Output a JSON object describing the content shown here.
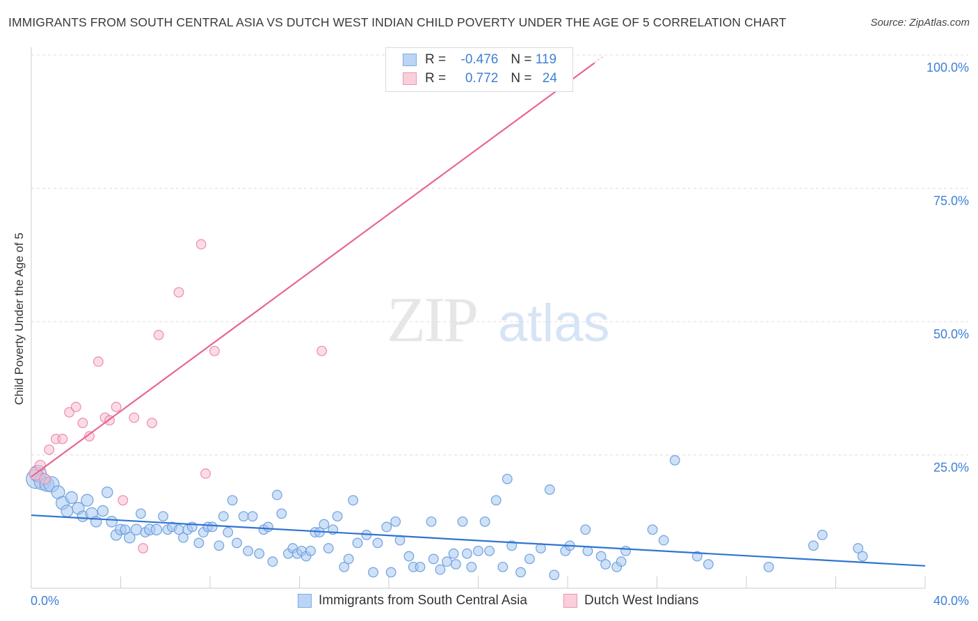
{
  "title": "IMMIGRANTS FROM SOUTH CENTRAL ASIA VS DUTCH WEST INDIAN CHILD POVERTY UNDER THE AGE OF 5 CORRELATION CHART",
  "source": "Source: ZipAtlas.com",
  "watermark": {
    "zip": "ZIP",
    "atlas": "atlas"
  },
  "legend": {
    "rows": [
      {
        "r_label": "R = ",
        "r_value": "-0.476",
        "n_label": "N = ",
        "n_value": "119",
        "color": "#a8c8f0",
        "border": "#7aaae6"
      },
      {
        "r_label": "R = ",
        "r_value": "0.772",
        "n_label": "N = ",
        "n_value": "24",
        "color": "#f8c0d0",
        "border": "#ef93b0"
      }
    ]
  },
  "bottom_legend": {
    "series1": "Immigrants from South Central Asia",
    "series2": "Dutch West Indians"
  },
  "colors": {
    "blue_fill": "#a8c8f0",
    "blue_stroke": "#6fa0e0",
    "blue_line": "#2f74d0",
    "pink_fill": "#f8c0d0",
    "pink_stroke": "#ec8cab",
    "pink_line": "#e8648e",
    "axis_label": "#3d7fd6",
    "grid": "#dddddd"
  },
  "chart_data": {
    "type": "scatter",
    "xlabel": "",
    "ylabel": "Child Poverty Under the Age of 5",
    "xlim": [
      0,
      40
    ],
    "ylim": [
      0,
      100
    ],
    "x_tick_labels": [
      {
        "value": 0,
        "label": "0.0%"
      },
      {
        "value": 40,
        "label": "40.0%"
      }
    ],
    "x_minor_ticks": [
      4,
      8,
      12,
      16,
      20,
      24,
      28,
      32,
      36
    ],
    "y_ticks": [
      {
        "value": 25,
        "label": "25.0%"
      },
      {
        "value": 50,
        "label": "50.0%"
      },
      {
        "value": 75,
        "label": "75.0%"
      },
      {
        "value": 100,
        "label": "100.0%"
      }
    ],
    "series": [
      {
        "name": "Immigrants from South Central Asia",
        "color": "#a8c8f0",
        "trend": {
          "x": [
            0,
            40
          ],
          "y": [
            13.7,
            4.2
          ]
        },
        "points": [
          [
            0.2,
            20.5,
            16
          ],
          [
            0.3,
            21.5,
            14
          ],
          [
            0.5,
            20,
            14
          ],
          [
            0.7,
            19.5,
            12
          ],
          [
            0.9,
            19.5,
            13
          ],
          [
            1.2,
            18,
            11
          ],
          [
            1.4,
            16,
            11
          ],
          [
            1.6,
            14.5,
            10
          ],
          [
            1.8,
            17,
            10
          ],
          [
            2.1,
            15,
            10
          ],
          [
            2.3,
            13.5,
            9
          ],
          [
            2.5,
            16.5,
            10
          ],
          [
            2.7,
            14,
            10
          ],
          [
            2.9,
            12.5,
            9
          ],
          [
            3.2,
            14.5,
            9
          ],
          [
            3.4,
            18,
            9
          ],
          [
            3.6,
            12.5,
            9
          ],
          [
            3.8,
            10,
            9
          ],
          [
            4.0,
            11,
            9
          ],
          [
            4.2,
            11,
            8
          ],
          [
            4.4,
            9.5,
            9
          ],
          [
            4.7,
            11,
            9
          ],
          [
            4.9,
            14,
            8
          ],
          [
            5.1,
            10.5,
            8
          ],
          [
            5.3,
            11,
            9
          ],
          [
            5.6,
            11,
            9
          ],
          [
            5.9,
            13.5,
            8
          ],
          [
            6.1,
            11,
            8
          ],
          [
            6.3,
            11.5,
            8
          ],
          [
            6.6,
            11,
            8
          ],
          [
            6.8,
            9.5,
            8
          ],
          [
            7.0,
            11,
            8
          ],
          [
            7.2,
            11.5,
            8
          ],
          [
            7.5,
            8.5,
            8
          ],
          [
            7.7,
            10.5,
            8
          ],
          [
            7.9,
            11.5,
            8
          ],
          [
            8.1,
            11.5,
            8
          ],
          [
            8.4,
            8,
            8
          ],
          [
            8.6,
            13.5,
            8
          ],
          [
            8.8,
            10.5,
            8
          ],
          [
            9.0,
            16.5,
            8
          ],
          [
            9.2,
            8.5,
            8
          ],
          [
            9.5,
            13.5,
            8
          ],
          [
            9.7,
            7,
            8
          ],
          [
            9.9,
            13.5,
            8
          ],
          [
            10.2,
            6.5,
            8
          ],
          [
            10.4,
            11,
            8
          ],
          [
            10.6,
            11.5,
            8
          ],
          [
            10.8,
            5,
            8
          ],
          [
            11.0,
            17.5,
            8
          ],
          [
            11.2,
            14,
            8
          ],
          [
            11.5,
            6.5,
            8
          ],
          [
            11.7,
            7.5,
            8
          ],
          [
            11.9,
            6.5,
            8
          ],
          [
            12.1,
            7,
            8
          ],
          [
            12.3,
            6,
            8
          ],
          [
            12.5,
            7,
            8
          ],
          [
            12.7,
            10.5,
            8
          ],
          [
            12.9,
            10.5,
            8
          ],
          [
            13.1,
            12,
            8
          ],
          [
            13.3,
            7.5,
            8
          ],
          [
            13.5,
            11,
            8
          ],
          [
            13.7,
            13.5,
            8
          ],
          [
            14.0,
            4,
            8
          ],
          [
            14.2,
            5.5,
            8
          ],
          [
            14.4,
            16.5,
            8
          ],
          [
            14.6,
            8.5,
            8
          ],
          [
            15.0,
            10,
            8
          ],
          [
            15.3,
            3,
            8
          ],
          [
            15.5,
            8.5,
            8
          ],
          [
            15.9,
            11.5,
            8
          ],
          [
            16.1,
            3,
            8
          ],
          [
            16.3,
            12.5,
            8
          ],
          [
            16.5,
            9,
            8
          ],
          [
            16.9,
            6,
            8
          ],
          [
            17.1,
            4,
            8
          ],
          [
            17.4,
            4,
            8
          ],
          [
            17.9,
            12.5,
            8
          ],
          [
            18.0,
            5.5,
            8
          ],
          [
            18.3,
            3.5,
            8
          ],
          [
            18.6,
            5,
            8
          ],
          [
            18.9,
            6.5,
            8
          ],
          [
            19.0,
            4.5,
            8
          ],
          [
            19.3,
            12.5,
            8
          ],
          [
            19.5,
            6.5,
            8
          ],
          [
            19.7,
            4,
            8
          ],
          [
            20.0,
            7,
            8
          ],
          [
            20.3,
            12.5,
            8
          ],
          [
            20.5,
            7,
            8
          ],
          [
            20.8,
            16.5,
            8
          ],
          [
            21.1,
            4,
            8
          ],
          [
            21.3,
            20.5,
            8
          ],
          [
            21.5,
            8,
            8
          ],
          [
            21.9,
            3,
            8
          ],
          [
            22.3,
            5.5,
            8
          ],
          [
            22.8,
            7.5,
            8
          ],
          [
            23.2,
            18.5,
            8
          ],
          [
            23.4,
            2.5,
            8
          ],
          [
            23.9,
            7,
            8
          ],
          [
            24.1,
            8,
            8
          ],
          [
            24.8,
            11,
            8
          ],
          [
            24.9,
            7,
            8
          ],
          [
            25.5,
            6,
            8
          ],
          [
            26.2,
            4,
            8
          ],
          [
            26.4,
            5,
            8
          ],
          [
            26.6,
            7,
            8
          ],
          [
            27.8,
            11,
            8
          ],
          [
            28.3,
            9,
            8
          ],
          [
            28.8,
            24,
            8
          ],
          [
            29.8,
            6,
            8
          ],
          [
            30.3,
            4.5,
            8
          ],
          [
            33.0,
            4,
            8
          ],
          [
            35.0,
            8,
            8
          ],
          [
            35.4,
            10,
            8
          ],
          [
            37.0,
            7.5,
            8
          ],
          [
            37.2,
            6,
            8
          ],
          [
            25.7,
            4.5,
            8
          ]
        ]
      },
      {
        "name": "Dutch West Indians",
        "color": "#f8c0d0",
        "trend": {
          "x": [
            0,
            25.2
          ],
          "y": [
            20.9,
            98.5
          ]
        },
        "points": [
          [
            0.2,
            21.5,
            11
          ],
          [
            0.4,
            23,
            9
          ],
          [
            0.6,
            20.5,
            9
          ],
          [
            0.8,
            26,
            8
          ],
          [
            1.1,
            28,
            8
          ],
          [
            1.4,
            28,
            8
          ],
          [
            1.7,
            33,
            8
          ],
          [
            2.0,
            34,
            8
          ],
          [
            2.3,
            31,
            8
          ],
          [
            2.6,
            28.5,
            8
          ],
          [
            3.0,
            42.5,
            8
          ],
          [
            3.3,
            32,
            8
          ],
          [
            3.5,
            31.5,
            8
          ],
          [
            3.8,
            34,
            8
          ],
          [
            4.1,
            16.5,
            8
          ],
          [
            4.6,
            32,
            8
          ],
          [
            5.0,
            7.5,
            8
          ],
          [
            5.4,
            31,
            8
          ],
          [
            5.7,
            47.5,
            8
          ],
          [
            6.6,
            55.5,
            8
          ],
          [
            7.6,
            64.5,
            8
          ],
          [
            7.8,
            21.5,
            8
          ],
          [
            8.2,
            44.5,
            8
          ],
          [
            13.0,
            44.5,
            8
          ]
        ]
      }
    ]
  }
}
